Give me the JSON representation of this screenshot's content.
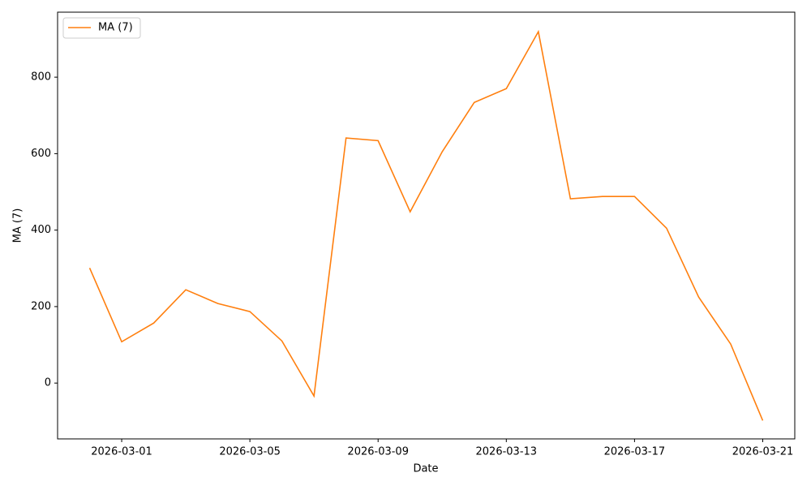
{
  "chart_data": {
    "type": "line",
    "x_label": "Date",
    "y_label": "MA (7)",
    "x": [
      "2026-02-28",
      "2026-03-01",
      "2026-03-02",
      "2026-03-03",
      "2026-03-04",
      "2026-03-05",
      "2026-03-06",
      "2026-03-07",
      "2026-03-08",
      "2026-03-09",
      "2026-03-10",
      "2026-03-11",
      "2026-03-12",
      "2026-03-13",
      "2026-03-14",
      "2026-03-15",
      "2026-03-16",
      "2026-03-17",
      "2026-03-18",
      "2026-03-19",
      "2026-03-20",
      "2026-03-21"
    ],
    "series": [
      {
        "name": "MA (7)",
        "color": "#ff7f0e",
        "values": [
          301,
          108,
          157,
          244,
          208,
          187,
          110,
          -34,
          641,
          634,
          448,
          605,
          734,
          770,
          919,
          482,
          488,
          488,
          405,
          225,
          102,
          -98
        ]
      }
    ],
    "xlim": [
      "2026-02-27",
      "2026-03-22"
    ],
    "xticks": [
      "2026-03-01",
      "2026-03-05",
      "2026-03-09",
      "2026-03-13",
      "2026-03-17",
      "2026-03-21"
    ],
    "ylim": [
      -146,
      970
    ],
    "yticks": [
      0,
      200,
      400,
      600,
      800
    ],
    "legend": "upper left"
  }
}
